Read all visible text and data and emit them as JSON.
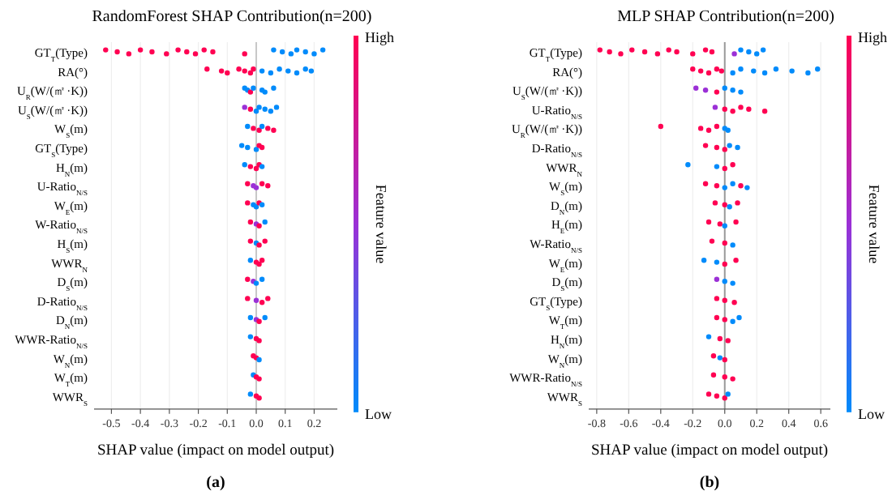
{
  "chart_data": [
    {
      "type": "scatter",
      "orientation": "horizontal",
      "title": "RandomForest SHAP Contribution(n=200)",
      "xlabel": "SHAP value (impact on model output)",
      "clabel": "Feature value",
      "annotations": [
        "(a)",
        "High",
        "Low"
      ],
      "grid": "x",
      "xlim": [
        -0.56,
        0.28
      ],
      "xticks": [
        -0.5,
        -0.4,
        -0.3,
        -0.2,
        -0.1,
        {
          "value": 0,
          "label": "0.0"
        },
        0.1,
        0.2
      ],
      "ref_lines": [
        {
          "axis": "x",
          "value": 0,
          "color": "#c8c8c8"
        }
      ],
      "categories": [
        "GT$_{T}$(Type)",
        "RA(°)",
        "U$_{R}$(W/(㎡·K))",
        "U$_{S}$(W/(㎡·K))",
        "W$_{S}$(m)",
        "GT$_{S}$(Type)",
        "H$_{N}$(m)",
        "U-Ratio$_{N/S}$",
        "W$_{E}$(m)",
        "W-Ratio$_{N/S}$",
        "H$_{S}$(m)",
        "WWR$_{N}$",
        "D$_{S}$(m)",
        "D-Ratio$_{N/S}$",
        "D$_{N}$(m)",
        "WWR-Ratio$_{N/S}$",
        "W$_{N}$(m)",
        "W$_{T}$(m)",
        "WWR$_{S}$"
      ],
      "series": [
        {
          "x": [
            "GT$_{T}$(Type)",
            "GT$_{T}$(Type)",
            "GT$_{T}$(Type)",
            "GT$_{T}$(Type)",
            "GT$_{T}$(Type)",
            "GT$_{T}$(Type)",
            "GT$_{T}$(Type)",
            "GT$_{T}$(Type)",
            "GT$_{T}$(Type)",
            "GT$_{T}$(Type)",
            "GT$_{T}$(Type)",
            "GT$_{T}$(Type)",
            "GT$_{T}$(Type)",
            "GT$_{T}$(Type)",
            "GT$_{T}$(Type)",
            "GT$_{T}$(Type)",
            "GT$_{T}$(Type)",
            "GT$_{T}$(Type)",
            "GT$_{T}$(Type)"
          ],
          "values": [
            -0.52,
            -0.48,
            -0.44,
            -0.4,
            -0.36,
            -0.31,
            -0.27,
            -0.24,
            -0.21,
            -0.18,
            -0.15,
            -0.04,
            0.06,
            0.09,
            0.12,
            0.14,
            0.17,
            0.2,
            0.23
          ],
          "colors": [
            "#ff0052",
            "#ff0052",
            "#ff0052",
            "#ff0052",
            "#ff0052",
            "#ff0052",
            "#ff0052",
            "#ff0052",
            "#ff0052",
            "#ff0052",
            "#ff0052",
            "#ff0052",
            "#008bfb",
            "#008bfb",
            "#008bfb",
            "#008bfb",
            "#008bfb",
            "#008bfb",
            "#008bfb"
          ]
        },
        {
          "x": [
            "RA(°)",
            "RA(°)",
            "RA(°)",
            "RA(°)",
            "RA(°)",
            "RA(°)",
            "RA(°)",
            "RA(°)",
            "RA(°)",
            "RA(°)",
            "RA(°)",
            "RA(°)",
            "RA(°)",
            "RA(°)"
          ],
          "values": [
            -0.17,
            -0.12,
            -0.1,
            -0.06,
            -0.04,
            -0.02,
            -0.01,
            0.02,
            0.05,
            0.08,
            0.11,
            0.14,
            0.17,
            0.19
          ],
          "colors": [
            "#ff0052",
            "#ff0052",
            "#ff0052",
            "#ff0052",
            "#ff0052",
            "#ff0052",
            "#ff0052",
            "#008bfb",
            "#008bfb",
            "#008bfb",
            "#008bfb",
            "#008bfb",
            "#008bfb",
            "#008bfb"
          ]
        },
        {
          "x": [
            "U$_{R}$(W/(㎡·K))",
            "U$_{R}$(W/(㎡·K))",
            "U$_{R}$(W/(㎡·K))",
            "U$_{R}$(W/(㎡·K))",
            "U$_{R}$(W/(㎡·K))",
            "U$_{R}$(W/(㎡·K))",
            "U$_{R}$(W/(㎡·K))"
          ],
          "values": [
            -0.04,
            -0.03,
            -0.02,
            -0.01,
            0.02,
            0.03,
            0.06
          ],
          "colors": [
            "#008bfb",
            "#008bfb",
            "#ff0052",
            "#008bfb",
            "#008bfb",
            "#008bfb",
            "#008bfb"
          ]
        },
        {
          "x": [
            "U$_{S}$(W/(㎡·K))",
            "U$_{S}$(W/(㎡·K))",
            "U$_{S}$(W/(㎡·K))",
            "U$_{S}$(W/(㎡·K))",
            "U$_{S}$(W/(㎡·K))",
            "U$_{S}$(W/(㎡·K))",
            "U$_{S}$(W/(㎡·K))"
          ],
          "values": [
            -0.04,
            -0.02,
            0,
            0.01,
            0.03,
            0.05,
            0.07
          ],
          "colors": [
            "#9b30d6",
            "#ff0052",
            "#008bfb",
            "#008bfb",
            "#008bfb",
            "#008bfb",
            "#008bfb"
          ]
        },
        {
          "x": [
            "W$_{S}$(m)",
            "W$_{S}$(m)",
            "W$_{S}$(m)",
            "W$_{S}$(m)",
            "W$_{S}$(m)",
            "W$_{S}$(m)"
          ],
          "values": [
            -0.03,
            -0.01,
            0.01,
            0.02,
            0.04,
            0.06
          ],
          "colors": [
            "#008bfb",
            "#ff0052",
            "#ff0052",
            "#008bfb",
            "#ff0052",
            "#ff0052"
          ]
        },
        {
          "x": [
            "GT$_{S}$(Type)",
            "GT$_{S}$(Type)",
            "GT$_{S}$(Type)",
            "GT$_{S}$(Type)",
            "GT$_{S}$(Type)"
          ],
          "values": [
            -0.05,
            -0.03,
            0,
            0.01,
            0.02
          ],
          "colors": [
            "#008bfb",
            "#008bfb",
            "#008bfb",
            "#ff0052",
            "#ff0052"
          ]
        },
        {
          "x": [
            "H$_{N}$(m)",
            "H$_{N}$(m)",
            "H$_{N}$(m)",
            "H$_{N}$(m)",
            "H$_{N}$(m)"
          ],
          "values": [
            -0.04,
            -0.02,
            0,
            0.01,
            0.02
          ],
          "colors": [
            "#008bfb",
            "#ff0052",
            "#ff0052",
            "#ff0052",
            "#008bfb"
          ]
        },
        {
          "x": [
            "U-Ratio$_{N/S}$",
            "U-Ratio$_{N/S}$",
            "U-Ratio$_{N/S}$",
            "U-Ratio$_{N/S}$",
            "U-Ratio$_{N/S}$"
          ],
          "values": [
            -0.03,
            -0.01,
            0,
            0.02,
            0.04
          ],
          "colors": [
            "#ff0052",
            "#9b30d6",
            "#9b30d6",
            "#ff0052",
            "#ff0052"
          ]
        },
        {
          "x": [
            "W$_{E}$(m)",
            "W$_{E}$(m)",
            "W$_{E}$(m)",
            "W$_{E}$(m)",
            "W$_{E}$(m)"
          ],
          "values": [
            -0.03,
            -0.01,
            0,
            0.01,
            0.02
          ],
          "colors": [
            "#ff0052",
            "#008bfb",
            "#008bfb",
            "#ff0052",
            "#008bfb"
          ]
        },
        {
          "x": [
            "W-Ratio$_{N/S}$",
            "W-Ratio$_{N/S}$",
            "W-Ratio$_{N/S}$",
            "W-Ratio$_{N/S}$"
          ],
          "values": [
            -0.02,
            0,
            0.01,
            0.03
          ],
          "colors": [
            "#ff0052",
            "#9b30d6",
            "#ff0052",
            "#008bfb"
          ]
        },
        {
          "x": [
            "H$_{S}$(m)",
            "H$_{S}$(m)",
            "H$_{S}$(m)",
            "H$_{S}$(m)"
          ],
          "values": [
            -0.02,
            0,
            0.01,
            0.03
          ],
          "colors": [
            "#ff0052",
            "#008bfb",
            "#ff0052",
            "#ff0052"
          ]
        },
        {
          "x": [
            "WWR$_{N}$",
            "WWR$_{N}$",
            "WWR$_{N}$",
            "WWR$_{N}$"
          ],
          "values": [
            -0.02,
            0,
            0.01,
            0.02
          ],
          "colors": [
            "#008bfb",
            "#ff0052",
            "#ff0052",
            "#ff0052"
          ]
        },
        {
          "x": [
            "D$_{S}$(m)",
            "D$_{S}$(m)",
            "D$_{S}$(m)",
            "D$_{S}$(m)"
          ],
          "values": [
            -0.03,
            -0.01,
            0,
            0.02
          ],
          "colors": [
            "#ff0052",
            "#9b30d6",
            "#008bfb",
            "#008bfb"
          ]
        },
        {
          "x": [
            "D-Ratio$_{N/S}$",
            "D-Ratio$_{N/S}$",
            "D-Ratio$_{N/S}$",
            "D-Ratio$_{N/S}$"
          ],
          "values": [
            -0.03,
            0,
            0.02,
            0.04
          ],
          "colors": [
            "#ff0052",
            "#9b30d6",
            "#ff0052",
            "#ff0052"
          ]
        },
        {
          "x": [
            "D$_{N}$(m)",
            "D$_{N}$(m)",
            "D$_{N}$(m)",
            "D$_{N}$(m)"
          ],
          "values": [
            -0.02,
            0,
            0.01,
            0.03
          ],
          "colors": [
            "#008bfb",
            "#9b30d6",
            "#ff0052",
            "#008bfb"
          ]
        },
        {
          "x": [
            "WWR-Ratio$_{N/S}$",
            "WWR-Ratio$_{N/S}$",
            "WWR-Ratio$_{N/S}$"
          ],
          "values": [
            -0.02,
            0,
            0.01
          ],
          "colors": [
            "#008bfb",
            "#ff0052",
            "#ff0052"
          ]
        },
        {
          "x": [
            "W$_{N}$(m)",
            "W$_{N}$(m)",
            "W$_{N}$(m)"
          ],
          "values": [
            -0.01,
            0,
            0.01
          ],
          "colors": [
            "#ff0052",
            "#ff0052",
            "#008bfb"
          ]
        },
        {
          "x": [
            "W$_{T}$(m)",
            "W$_{T}$(m)",
            "W$_{T}$(m)"
          ],
          "values": [
            -0.01,
            0,
            0.01
          ],
          "colors": [
            "#008bfb",
            "#ff0052",
            "#ff0052"
          ]
        },
        {
          "x": [
            "WWR$_{S}$",
            "WWR$_{S}$",
            "WWR$_{S}$"
          ],
          "values": [
            -0.02,
            0,
            0.01
          ],
          "colors": [
            "#008bfb",
            "#ff0052",
            "#ff0052"
          ]
        }
      ]
    },
    {
      "type": "scatter",
      "orientation": "horizontal",
      "title": "MLP SHAP Contribution(n=200)",
      "xlabel": "SHAP value (impact on model output)",
      "clabel": "Feature value",
      "annotations": [
        "(b)",
        "High",
        "Low"
      ],
      "grid": "x",
      "xlim": [
        -0.85,
        0.66
      ],
      "xticks": [
        -0.8,
        -0.6,
        -0.4,
        -0.2,
        {
          "value": 0,
          "label": "0.0"
        },
        0.2,
        0.4,
        0.6
      ],
      "ref_lines": [
        {
          "axis": "x",
          "value": 0,
          "color": "#999999"
        }
      ],
      "categories": [
        "GT$_{T}$(Type)",
        "RA(°)",
        "U$_{S}$(W/(㎡·K))",
        "U-Ratio$_{N/S}$",
        "U$_{R}$(W/(㎡·K))",
        "D-Ratio$_{N/S}$",
        "WWR$_{N}$",
        "W$_{S}$(m)",
        "D$_{N}$(m)",
        "H$_{E}$(m)",
        "W-Ratio$_{N/S}$",
        "W$_{E}$(m)",
        "D$_{S}$(m)",
        "GT$_{S}$(Type)",
        "W$_{T}$(m)",
        "H$_{N}$(m)",
        "W$_{N}$(m)",
        "WWR-Ratio$_{N/S}$",
        "WWR$_{S}$"
      ],
      "series": [
        {
          "x": [
            "GT$_{T}$(Type)",
            "GT$_{T}$(Type)",
            "GT$_{T}$(Type)",
            "GT$_{T}$(Type)",
            "GT$_{T}$(Type)",
            "GT$_{T}$(Type)",
            "GT$_{T}$(Type)",
            "GT$_{T}$(Type)",
            "GT$_{T}$(Type)",
            "GT$_{T}$(Type)",
            "GT$_{T}$(Type)",
            "GT$_{T}$(Type)",
            "GT$_{T}$(Type)",
            "GT$_{T}$(Type)",
            "GT$_{T}$(Type)",
            "GT$_{T}$(Type)"
          ],
          "values": [
            -0.78,
            -0.72,
            -0.65,
            -0.58,
            -0.5,
            -0.42,
            -0.35,
            -0.3,
            -0.2,
            -0.12,
            -0.08,
            0.06,
            0.1,
            0.15,
            0.2,
            0.24
          ],
          "colors": [
            "#ff0052",
            "#ff0052",
            "#ff0052",
            "#ff0052",
            "#ff0052",
            "#ff0052",
            "#ff0052",
            "#ff0052",
            "#ff0052",
            "#ff0052",
            "#ff0052",
            "#9b30d6",
            "#008bfb",
            "#008bfb",
            "#008bfb",
            "#008bfb"
          ]
        },
        {
          "x": [
            "RA(°)",
            "RA(°)",
            "RA(°)",
            "RA(°)",
            "RA(°)",
            "RA(°)",
            "RA(°)",
            "RA(°)",
            "RA(°)",
            "RA(°)",
            "RA(°)",
            "RA(°)",
            "RA(°)"
          ],
          "values": [
            -0.2,
            -0.15,
            -0.1,
            -0.05,
            -0.02,
            0.05,
            0.1,
            0.18,
            0.25,
            0.32,
            0.42,
            0.52,
            0.58
          ],
          "colors": [
            "#ff0052",
            "#ff0052",
            "#ff0052",
            "#ff0052",
            "#ff0052",
            "#008bfb",
            "#008bfb",
            "#008bfb",
            "#008bfb",
            "#008bfb",
            "#008bfb",
            "#008bfb",
            "#008bfb"
          ]
        },
        {
          "x": [
            "U$_{S}$(W/(㎡·K))",
            "U$_{S}$(W/(㎡·K))",
            "U$_{S}$(W/(㎡·K))",
            "U$_{S}$(W/(㎡·K))",
            "U$_{S}$(W/(㎡·K))",
            "U$_{S}$(W/(㎡·K))"
          ],
          "values": [
            -0.18,
            -0.12,
            -0.05,
            0,
            0.05,
            0.1
          ],
          "colors": [
            "#9b30d6",
            "#9b30d6",
            "#ff0052",
            "#008bfb",
            "#008bfb",
            "#008bfb"
          ]
        },
        {
          "x": [
            "U-Ratio$_{N/S}$",
            "U-Ratio$_{N/S}$",
            "U-Ratio$_{N/S}$",
            "U-Ratio$_{N/S}$",
            "U-Ratio$_{N/S}$",
            "U-Ratio$_{N/S}$"
          ],
          "values": [
            -0.06,
            0,
            0.05,
            0.1,
            0.15,
            0.25
          ],
          "colors": [
            "#9b30d6",
            "#ff0052",
            "#ff0052",
            "#ff0052",
            "#ff0052",
            "#ff0052"
          ]
        },
        {
          "x": [
            "U$_{R}$(W/(㎡·K))",
            "U$_{R}$(W/(㎡·K))",
            "U$_{R}$(W/(㎡·K))",
            "U$_{R}$(W/(㎡·K))",
            "U$_{R}$(W/(㎡·K))",
            "U$_{R}$(W/(㎡·K))"
          ],
          "values": [
            -0.4,
            -0.15,
            -0.1,
            -0.05,
            0,
            0.02
          ],
          "colors": [
            "#ff0052",
            "#ff0052",
            "#ff0052",
            "#ff0052",
            "#008bfb",
            "#008bfb"
          ]
        },
        {
          "x": [
            "D-Ratio$_{N/S}$",
            "D-Ratio$_{N/S}$",
            "D-Ratio$_{N/S}$",
            "D-Ratio$_{N/S}$",
            "D-Ratio$_{N/S}$"
          ],
          "values": [
            -0.12,
            -0.05,
            0,
            0.03,
            0.08
          ],
          "colors": [
            "#ff0052",
            "#ff0052",
            "#ff0052",
            "#008bfb",
            "#008bfb"
          ]
        },
        {
          "x": [
            "WWR$_{N}$",
            "WWR$_{N}$",
            "WWR$_{N}$",
            "WWR$_{N}$"
          ],
          "values": [
            -0.23,
            -0.05,
            0,
            0.05
          ],
          "colors": [
            "#008bfb",
            "#008bfb",
            "#ff0052",
            "#ff0052"
          ]
        },
        {
          "x": [
            "W$_{S}$(m)",
            "W$_{S}$(m)",
            "W$_{S}$(m)",
            "W$_{S}$(m)",
            "W$_{S}$(m)",
            "W$_{S}$(m)"
          ],
          "values": [
            -0.12,
            -0.05,
            0,
            0.05,
            0.1,
            0.14
          ],
          "colors": [
            "#ff0052",
            "#ff0052",
            "#008bfb",
            "#008bfb",
            "#ff0052",
            "#008bfb"
          ]
        },
        {
          "x": [
            "D$_{N}$(m)",
            "D$_{N}$(m)",
            "D$_{N}$(m)",
            "D$_{N}$(m)"
          ],
          "values": [
            -0.06,
            0,
            0.03,
            0.08
          ],
          "colors": [
            "#ff0052",
            "#ff0052",
            "#008bfb",
            "#ff0052"
          ]
        },
        {
          "x": [
            "H$_{E}$(m)",
            "H$_{E}$(m)",
            "H$_{E}$(m)",
            "H$_{E}$(m)"
          ],
          "values": [
            -0.1,
            -0.03,
            0,
            0.07
          ],
          "colors": [
            "#ff0052",
            "#ff0052",
            "#008bfb",
            "#ff0052"
          ]
        },
        {
          "x": [
            "W-Ratio$_{N/S}$",
            "W-Ratio$_{N/S}$",
            "W-Ratio$_{N/S}$"
          ],
          "values": [
            -0.08,
            0,
            0.05
          ],
          "colors": [
            "#ff0052",
            "#ff0052",
            "#008bfb"
          ]
        },
        {
          "x": [
            "W$_{E}$(m)",
            "W$_{E}$(m)",
            "W$_{E}$(m)",
            "W$_{E}$(m)"
          ],
          "values": [
            -0.13,
            -0.05,
            0,
            0.07
          ],
          "colors": [
            "#008bfb",
            "#008bfb",
            "#ff0052",
            "#ff0052"
          ]
        },
        {
          "x": [
            "D$_{S}$(m)",
            "D$_{S}$(m)",
            "D$_{S}$(m)"
          ],
          "values": [
            -0.05,
            0,
            0.05
          ],
          "colors": [
            "#9b30d6",
            "#008bfb",
            "#008bfb"
          ]
        },
        {
          "x": [
            "GT$_{S}$(Type)",
            "GT$_{S}$(Type)",
            "GT$_{S}$(Type)"
          ],
          "values": [
            -0.05,
            0,
            0.06
          ],
          "colors": [
            "#ff0052",
            "#ff0052",
            "#ff0052"
          ]
        },
        {
          "x": [
            "W$_{T}$(m)",
            "W$_{T}$(m)",
            "W$_{T}$(m)",
            "W$_{T}$(m)"
          ],
          "values": [
            -0.05,
            0,
            0.05,
            0.09
          ],
          "colors": [
            "#ff0052",
            "#ff0052",
            "#008bfb",
            "#008bfb"
          ]
        },
        {
          "x": [
            "H$_{N}$(m)",
            "H$_{N}$(m)",
            "H$_{N}$(m)"
          ],
          "values": [
            -0.1,
            -0.03,
            0.02
          ],
          "colors": [
            "#008bfb",
            "#ff0052",
            "#ff0052"
          ]
        },
        {
          "x": [
            "W$_{N}$(m)",
            "W$_{N}$(m)",
            "W$_{N}$(m)"
          ],
          "values": [
            -0.07,
            -0.03,
            0
          ],
          "colors": [
            "#ff0052",
            "#008bfb",
            "#ff0052"
          ]
        },
        {
          "x": [
            "WWR-Ratio$_{N/S}$",
            "WWR-Ratio$_{N/S}$",
            "WWR-Ratio$_{N/S}$"
          ],
          "values": [
            -0.07,
            0,
            0.05
          ],
          "colors": [
            "#ff0052",
            "#ff0052",
            "#ff0052"
          ]
        },
        {
          "x": [
            "WWR$_{S}$",
            "WWR$_{S}$",
            "WWR$_{S}$",
            "WWR$_{S}$"
          ],
          "values": [
            -0.1,
            -0.05,
            0,
            0.02
          ],
          "colors": [
            "#ff0052",
            "#ff0052",
            "#ff0052",
            "#008bfb"
          ]
        }
      ]
    }
  ]
}
